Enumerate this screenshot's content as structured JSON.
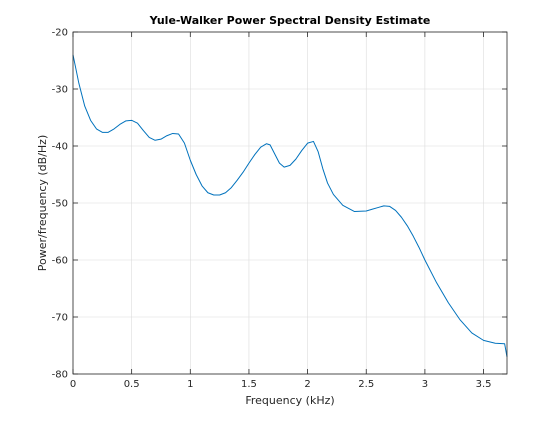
{
  "chart_data": {
    "type": "line",
    "title": "Yule-Walker Power Spectral Density Estimate",
    "xlabel": "Frequency (kHz)",
    "ylabel": "Power/frequency (dB/Hz)",
    "xlim": [
      0,
      3.7
    ],
    "ylim": [
      -80,
      -20
    ],
    "xticks": [
      0,
      0.5,
      1,
      1.5,
      2,
      2.5,
      3,
      3.5
    ],
    "xtick_labels": [
      "0",
      "0.5",
      "1",
      "1.5",
      "2",
      "2.5",
      "3",
      "3.5"
    ],
    "yticks": [
      -80,
      -70,
      -60,
      -50,
      -40,
      -30,
      -20
    ],
    "ytick_labels": [
      "-80",
      "-70",
      "-60",
      "-50",
      "-40",
      "-30",
      "-20"
    ],
    "grid": true,
    "line_color": "#0072bd",
    "series": [
      {
        "x": [
          0,
          0.02,
          0.05,
          0.1,
          0.15,
          0.2,
          0.25,
          0.3,
          0.35,
          0.4,
          0.45,
          0.5,
          0.55,
          0.6,
          0.65,
          0.7,
          0.75,
          0.8,
          0.85,
          0.9,
          0.95,
          1.0,
          1.05,
          1.1,
          1.15,
          1.2,
          1.25,
          1.3,
          1.35,
          1.4,
          1.45,
          1.5,
          1.55,
          1.6,
          1.65,
          1.68,
          1.72,
          1.76,
          1.8,
          1.85,
          1.9,
          1.95,
          2.0,
          2.05,
          2.09,
          2.13,
          2.17,
          2.22,
          2.3,
          2.4,
          2.5,
          2.55,
          2.6,
          2.65,
          2.7,
          2.75,
          2.8,
          2.85,
          2.9,
          2.95,
          3.0,
          3.1,
          3.2,
          3.3,
          3.4,
          3.5,
          3.6,
          3.68,
          3.7
        ],
        "y": [
          -24,
          -26,
          -29,
          -33,
          -35.5,
          -37,
          -37.6,
          -37.6,
          -37,
          -36.2,
          -35.6,
          -35.5,
          -36,
          -37.3,
          -38.5,
          -39,
          -38.8,
          -38.2,
          -37.8,
          -37.9,
          -39.5,
          -42.5,
          -45,
          -47,
          -48.2,
          -48.6,
          -48.6,
          -48.2,
          -47.3,
          -46,
          -44.6,
          -43,
          -41.5,
          -40.2,
          -39.6,
          -39.8,
          -41.4,
          -43,
          -43.7,
          -43.4,
          -42.3,
          -40.8,
          -39.5,
          -39.2,
          -41,
          -44,
          -46.5,
          -48.5,
          -50.4,
          -51.5,
          -51.4,
          -51.1,
          -50.8,
          -50.5,
          -50.6,
          -51.3,
          -52.5,
          -54,
          -55.8,
          -57.8,
          -60,
          -64,
          -67.5,
          -70.5,
          -72.8,
          -74.1,
          -74.6,
          -74.7,
          -77
        ]
      }
    ]
  }
}
